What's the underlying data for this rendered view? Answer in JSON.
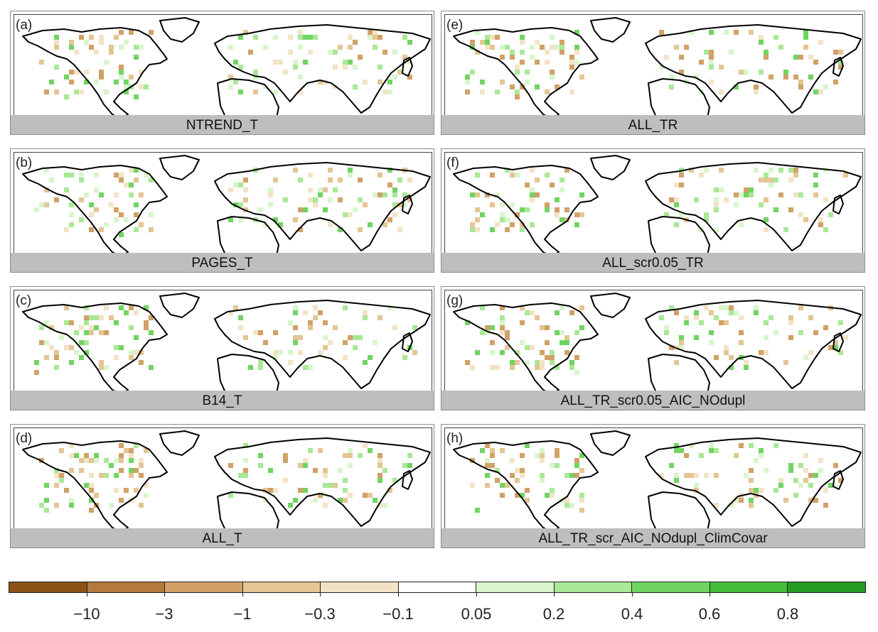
{
  "panels": [
    {
      "label": "(a)",
      "title": "NTREND_T"
    },
    {
      "label": "(b)",
      "title": "PAGES_T"
    },
    {
      "label": "(c)",
      "title": "B14_T"
    },
    {
      "label": "(d)",
      "title": "ALL_T"
    },
    {
      "label": "(e)",
      "title": "ALL_TR"
    },
    {
      "label": "(f)",
      "title": "ALL_scr0.05_TR"
    },
    {
      "label": "(g)",
      "title": "ALL_TR_scr0.05_AIC_NOdupl"
    },
    {
      "label": "(h)",
      "title": "ALL_TR_scr_AIC_NOdupl_ClimCovar"
    }
  ],
  "legend": {
    "colors": [
      "#8b5218",
      "#b37a3c",
      "#d1a167",
      "#e4c594",
      "#f3e3c6",
      "#ffffff",
      "#d8f5cc",
      "#a9e897",
      "#71d462",
      "#45bd3b",
      "#239c24"
    ],
    "tick_labels": [
      "−10",
      "−3",
      "−1",
      "−0.3",
      "−0.1",
      "0.05",
      "0.2",
      "0.4",
      "0.6",
      "0.8"
    ]
  }
}
